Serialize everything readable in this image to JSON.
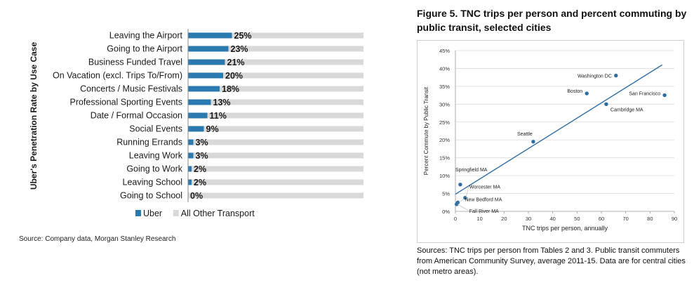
{
  "left_source": "Source: Company data, Morgan Stanley Research",
  "right_title": "Figure 5. TNC trips per person and percent commuting by public transit, selected cities",
  "right_source": "Sources: TNC trips per person from Tables 2 and 3.  Public transit commuters from American Community Survey, average 2011-15.  Data are for central cities (not metro areas).",
  "chart_data": [
    {
      "type": "bar",
      "orientation": "horizontal",
      "stacked": true,
      "ylabel": "Uber's Penetration Rate by Use Case",
      "categories": [
        "Leaving the Airport",
        "Going to the Airport",
        "Business Funded Travel",
        "On Vacation (excl. Trips To/From)",
        "Concerts / Music Festivals",
        "Professional Sporting Events",
        "Date / Formal Occasion",
        "Social Events",
        "Running Errands",
        "Leaving Work",
        "Going to Work",
        "Leaving School",
        "Going to School"
      ],
      "series": [
        {
          "name": "Uber",
          "values": [
            25,
            23,
            21,
            20,
            18,
            13,
            11,
            9,
            3,
            3,
            2,
            2,
            0
          ],
          "color": "#2a7ab0"
        },
        {
          "name": "All Other Transport",
          "values": [
            75,
            77,
            79,
            80,
            82,
            87,
            89,
            91,
            97,
            97,
            98,
            98,
            100
          ],
          "color": "#d9d9d9"
        }
      ],
      "data_labels": [
        "25%",
        "23%",
        "21%",
        "20%",
        "18%",
        "13%",
        "11%",
        "9%",
        "3%",
        "3%",
        "2%",
        "2%",
        "0%"
      ],
      "xlim": [
        0,
        100
      ],
      "legend_position": "bottom"
    },
    {
      "type": "scatter",
      "xlabel": "TNC trips per person, annually",
      "ylabel": "Percent Commute by Public Transit",
      "xlim": [
        0,
        90
      ],
      "ylim": [
        0,
        45
      ],
      "xticks": [
        "0",
        "10",
        "20",
        "30",
        "40",
        "50",
        "60",
        "70",
        "80",
        "90"
      ],
      "yticks": [
        "0%",
        "5%",
        "10%",
        "15%",
        "20%",
        "25%",
        "30%",
        "35%",
        "40%",
        "45%"
      ],
      "point_color": "#2e6da4",
      "points": [
        {
          "label": "Washington DC",
          "x": 66,
          "y": 38
        },
        {
          "label": "Boston",
          "x": 54,
          "y": 33
        },
        {
          "label": "San Francisco",
          "x": 86,
          "y": 32.5
        },
        {
          "label": "Cambridge MA",
          "x": 62,
          "y": 30
        },
        {
          "label": "Seattle",
          "x": 32,
          "y": 19.5
        },
        {
          "label": "Springfield MA",
          "x": 2,
          "y": 7.5
        },
        {
          "label": "Worcester MA",
          "x": 4,
          "y": 3.8
        },
        {
          "label": "New Bedford MA",
          "x": 1,
          "y": 2.5
        },
        {
          "label": "Fall River MA",
          "x": 0.5,
          "y": 2
        }
      ],
      "trendline": {
        "x": [
          0,
          85
        ],
        "y": [
          4.8,
          41
        ]
      },
      "grid": "horizontal"
    }
  ]
}
